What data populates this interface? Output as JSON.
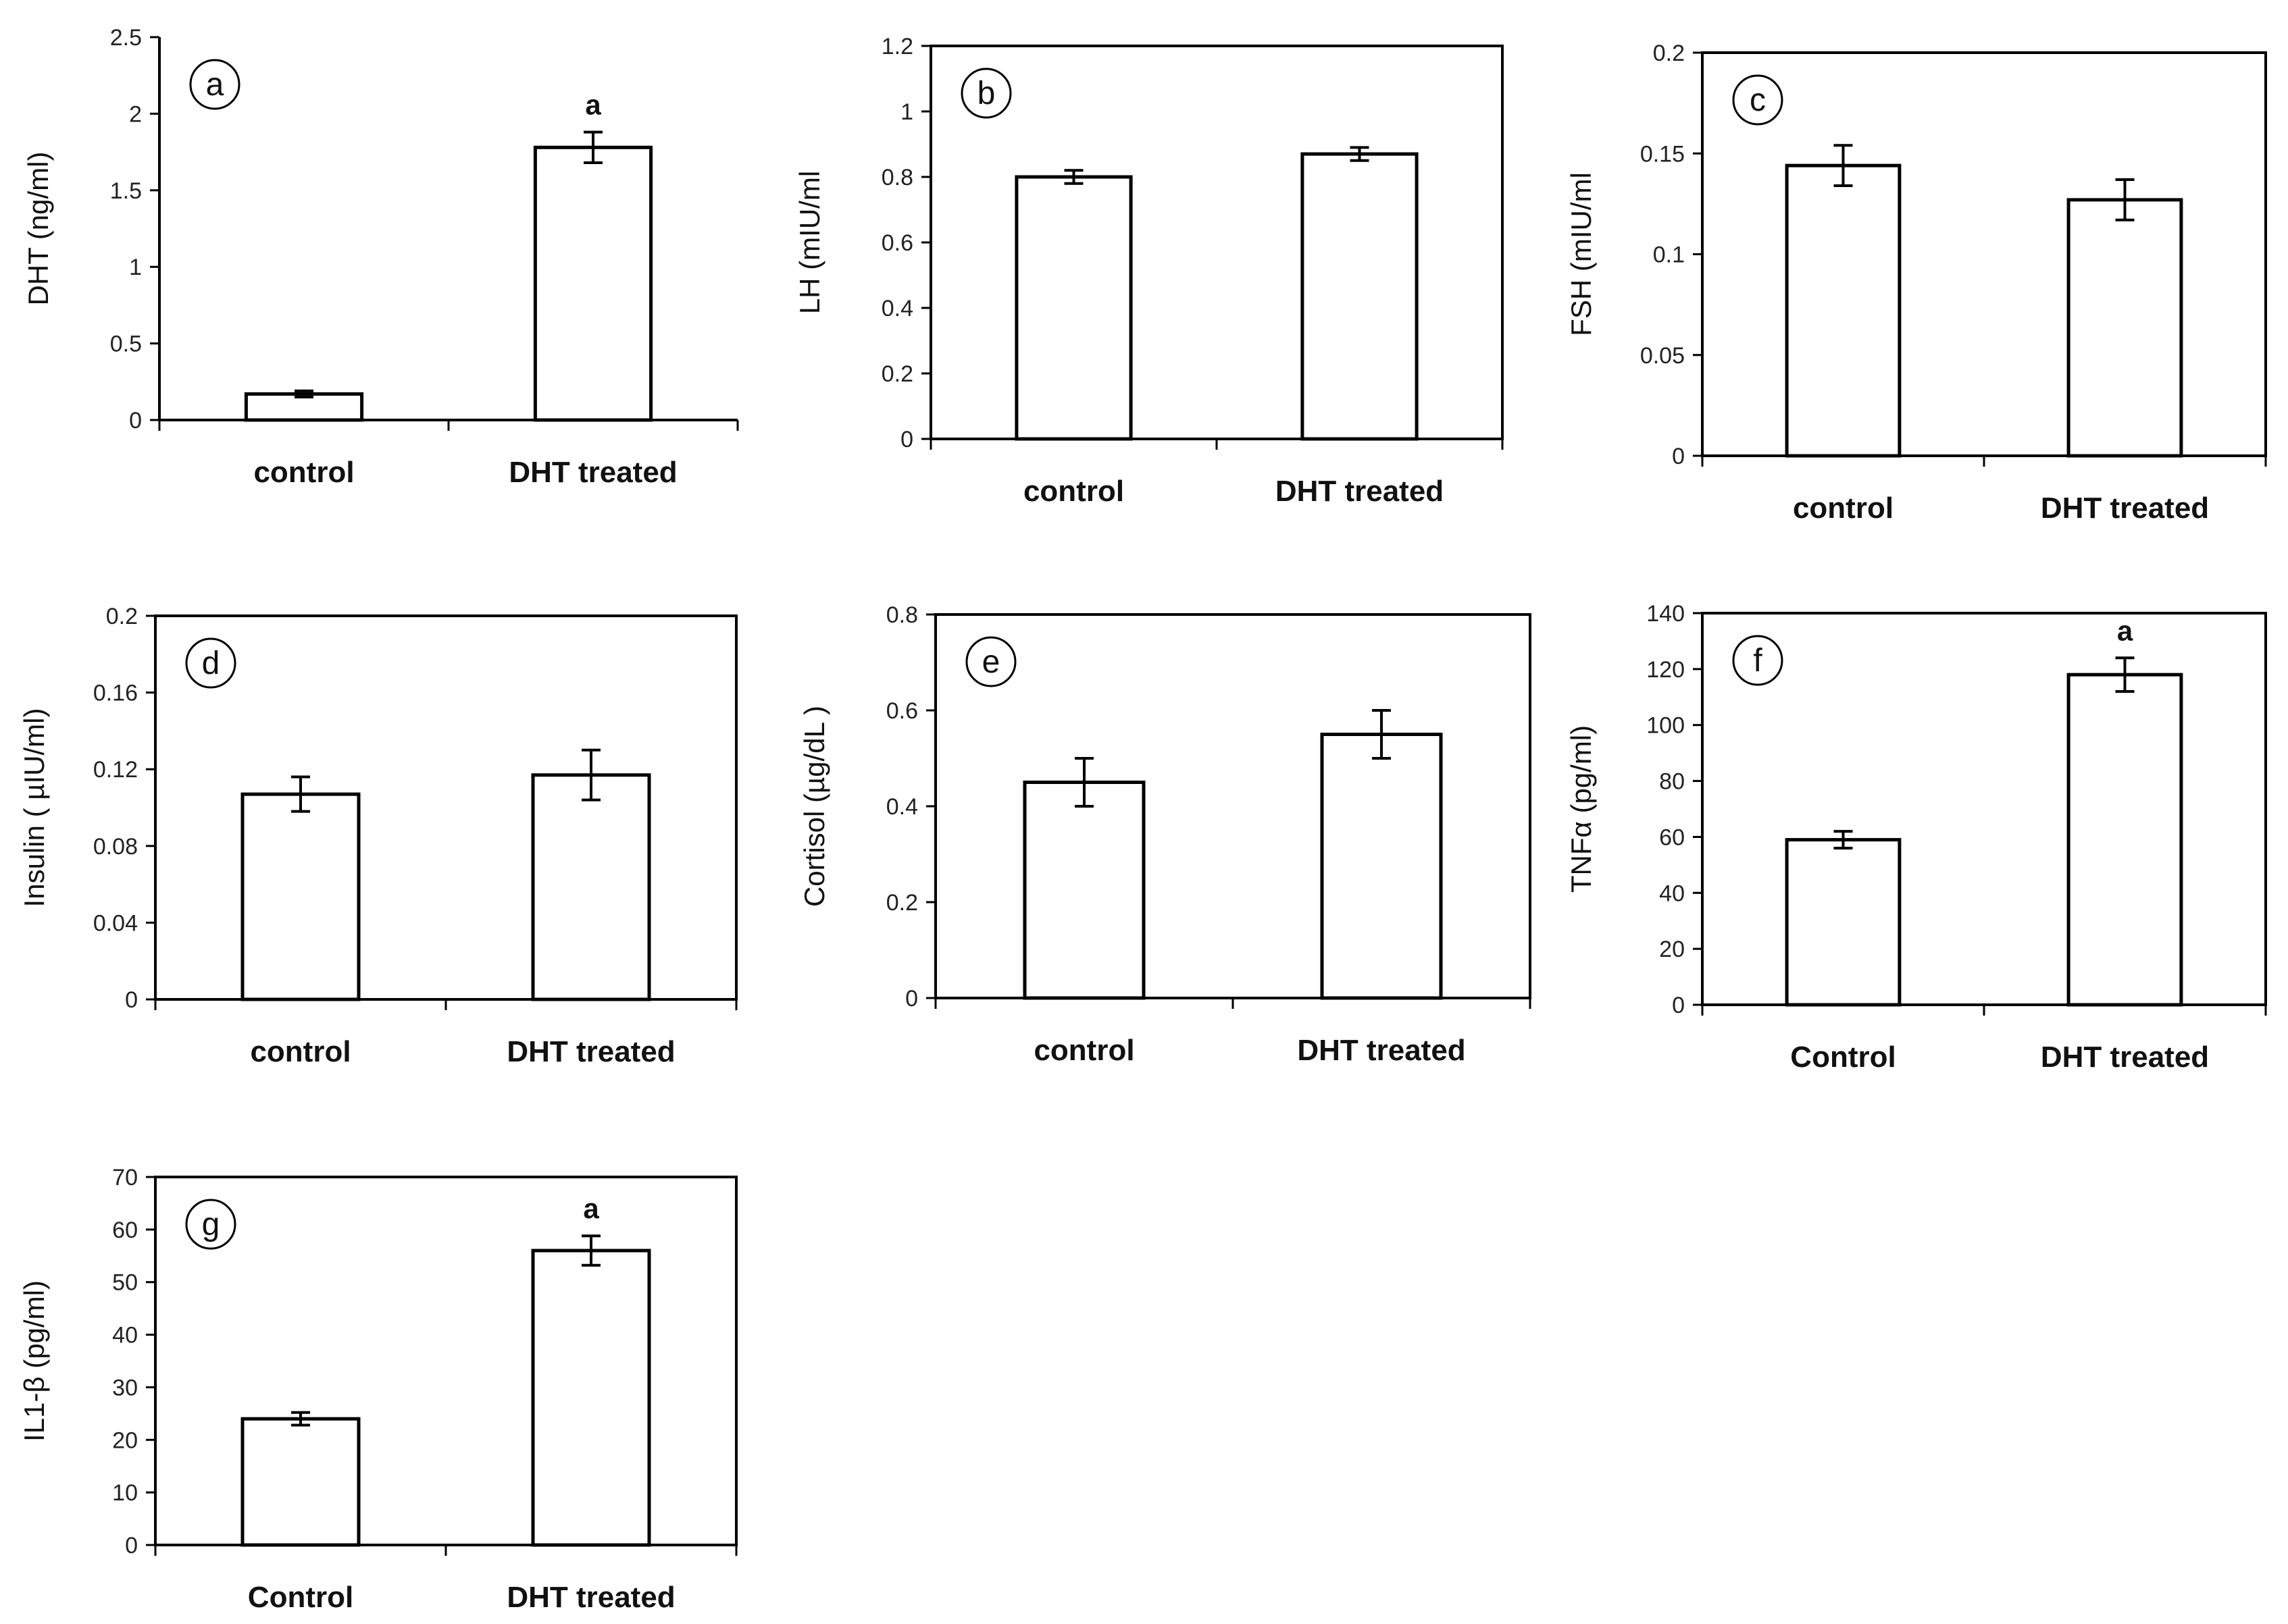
{
  "figure": {
    "description_visible": false
  },
  "chart_data": [
    {
      "id": "a",
      "type": "bar",
      "panel_label": "a",
      "title": "",
      "xlabel": "",
      "ylabel": "DHT (ng/ml)",
      "categories": [
        "control",
        "DHT treated"
      ],
      "values": [
        0.17,
        1.78
      ],
      "errors": [
        0.02,
        0.1
      ],
      "significance": [
        "",
        "a"
      ],
      "ylim": [
        0,
        2.5
      ],
      "yticks": [
        "0",
        "0.5",
        "1",
        "1.5",
        "2",
        "2.5"
      ],
      "ytick_values": [
        0,
        0.5,
        1,
        1.5,
        2,
        2.5
      ]
    },
    {
      "id": "b",
      "type": "bar",
      "panel_label": "b",
      "title": "",
      "xlabel": "",
      "ylabel": "LH (mIU/ml",
      "categories": [
        "control",
        "DHT treated"
      ],
      "values": [
        0.8,
        0.87
      ],
      "errors": [
        0.02,
        0.02
      ],
      "significance": [
        "",
        ""
      ],
      "ylim": [
        0,
        1.2
      ],
      "yticks": [
        "0",
        "0.2",
        "0.4",
        "0.6",
        "0.8",
        "1",
        "1.2"
      ],
      "ytick_values": [
        0,
        0.2,
        0.4,
        0.6,
        0.8,
        1,
        1.2
      ]
    },
    {
      "id": "c",
      "type": "bar",
      "panel_label": "c",
      "title": "",
      "xlabel": "",
      "ylabel": "FSH (mIU/ml",
      "categories": [
        "control",
        "DHT treated"
      ],
      "values": [
        0.144,
        0.127
      ],
      "errors": [
        0.01,
        0.01
      ],
      "significance": [
        "",
        ""
      ],
      "ylim": [
        0,
        0.2
      ],
      "yticks": [
        "0",
        "0.05",
        "0.1",
        "0.15",
        "0.2"
      ],
      "ytick_values": [
        0,
        0.05,
        0.1,
        0.15,
        0.2
      ]
    },
    {
      "id": "d",
      "type": "bar",
      "panel_label": "d",
      "title": "",
      "xlabel": "",
      "ylabel": "Insulin ( µIU/ml)",
      "categories": [
        "control",
        "DHT treated"
      ],
      "values": [
        0.107,
        0.117
      ],
      "errors": [
        0.009,
        0.013
      ],
      "significance": [
        "",
        ""
      ],
      "ylim": [
        0,
        0.2
      ],
      "yticks": [
        "0",
        "0.04",
        "0.08",
        "0.12",
        "0.16",
        "0.2"
      ],
      "ytick_values": [
        0,
        0.04,
        0.08,
        0.12,
        0.16,
        0.2
      ]
    },
    {
      "id": "e",
      "type": "bar",
      "panel_label": "e",
      "title": "",
      "xlabel": "",
      "ylabel": "Cortisol (µg/dL )",
      "categories": [
        "control",
        "DHT treated"
      ],
      "values": [
        0.45,
        0.55
      ],
      "errors": [
        0.05,
        0.05
      ],
      "significance": [
        "",
        ""
      ],
      "ylim": [
        0,
        0.8
      ],
      "yticks": [
        "0",
        "0.2",
        "0.4",
        "0.6",
        "0.8"
      ],
      "ytick_values": [
        0,
        0.2,
        0.4,
        0.6,
        0.8
      ]
    },
    {
      "id": "f",
      "type": "bar",
      "panel_label": "f",
      "title": "",
      "xlabel": "",
      "ylabel": "TNFα (pg/ml)",
      "categories": [
        "Control",
        "DHT treated"
      ],
      "values": [
        59,
        118
      ],
      "errors": [
        3,
        6
      ],
      "significance": [
        "",
        "a"
      ],
      "ylim": [
        0,
        140
      ],
      "yticks": [
        "0",
        "20",
        "40",
        "60",
        "80",
        "100",
        "120",
        "140"
      ],
      "ytick_values": [
        0,
        20,
        40,
        60,
        80,
        100,
        120,
        140
      ]
    },
    {
      "id": "g",
      "type": "bar",
      "panel_label": "g",
      "title": "",
      "xlabel": "",
      "ylabel": "IL1-β (pg/ml)",
      "categories": [
        "Control",
        "DHT treated"
      ],
      "values": [
        24,
        56
      ],
      "errors": [
        1.2,
        2.8
      ],
      "significance": [
        "",
        "a"
      ],
      "ylim": [
        0,
        70
      ],
      "yticks": [
        "0",
        "10",
        "20",
        "30",
        "40",
        "50",
        "60",
        "70"
      ],
      "ytick_values": [
        0,
        10,
        20,
        30,
        40,
        50,
        60,
        70
      ]
    }
  ]
}
